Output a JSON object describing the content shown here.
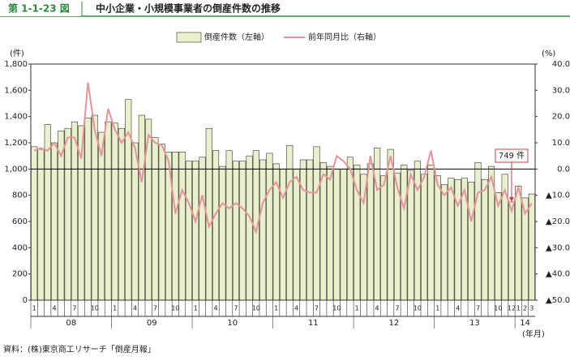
{
  "header": {
    "figure_no": "第 1-1-23 図",
    "title": "中小企業・小規模事業者の倒産件数の推移"
  },
  "source": "資料：(株)東京商工リサーチ「倒産月報」",
  "chart_data": {
    "type": "combo",
    "y_unit": "(件)",
    "y2_unit": "(%)",
    "x_unit": "(年月)",
    "categories": [
      "1",
      null,
      null,
      "4",
      null,
      null,
      "7",
      null,
      null,
      "10",
      null,
      null,
      "1",
      null,
      null,
      "4",
      null,
      null,
      "7",
      null,
      null,
      "10",
      null,
      null,
      "1",
      null,
      null,
      "4",
      null,
      null,
      "7",
      null,
      null,
      "10",
      null,
      null,
      "1",
      null,
      null,
      "4",
      null,
      null,
      "7",
      null,
      null,
      "10",
      null,
      null,
      "1",
      null,
      null,
      "4",
      null,
      null,
      "7",
      null,
      null,
      "10",
      null,
      null,
      "1",
      null,
      null,
      "4",
      null,
      null,
      "7",
      null,
      null,
      "10",
      null,
      "12",
      "1",
      "2",
      "3"
    ],
    "years": [
      "08",
      "09",
      "10",
      "11",
      "12",
      "13",
      "14"
    ],
    "series": [
      {
        "name": "倒産件数（左軸）",
        "type": "bar",
        "color": "#e8f0cc",
        "values": [
          1170,
          1150,
          1340,
          1200,
          1290,
          1310,
          1360,
          1330,
          1390,
          1410,
          1280,
          1360,
          1350,
          1310,
          1530,
          1200,
          1410,
          1380,
          1240,
          1190,
          1130,
          1130,
          1130,
          1060,
          1060,
          1090,
          1310,
          1140,
          1020,
          1140,
          1060,
          1060,
          1100,
          1140,
          1070,
          1120,
          1040,
          1000,
          1180,
          1000,
          1070,
          1070,
          1170,
          1050,
          1020,
          1000,
          1000,
          1090,
          1030,
          960,
          1040,
          1160,
          950,
          1150,
          970,
          1030,
          990,
          1060,
          960,
          1030,
          950,
          880,
          930,
          920,
          930,
          900,
          1050,
          920,
          1020,
          820,
          960,
          749,
          870,
          780,
          810
        ]
      },
      {
        "name": "前年同月比（右軸）",
        "type": "line",
        "axis": "y2",
        "color": "#e8939a",
        "values": [
          7,
          8,
          7,
          10,
          5,
          12,
          12,
          4,
          33,
          15,
          5,
          23,
          15,
          10,
          14,
          8,
          -5,
          13,
          10,
          9,
          3,
          -17,
          -8,
          -13,
          -20,
          -10,
          -22,
          -17,
          -13,
          -15,
          -13,
          -15,
          -18,
          -24,
          -13,
          -8,
          -5,
          -11,
          -5,
          -3,
          -8,
          -9,
          -9,
          -2,
          -4,
          5,
          3,
          0,
          -8,
          -13,
          5,
          -8,
          -6,
          5,
          -7,
          -15,
          -2,
          -8,
          -3,
          7,
          -6,
          -10,
          -7,
          -14,
          -8,
          -20,
          -9,
          -8,
          -3,
          -14,
          -8,
          -16,
          -7,
          -17,
          -13
        ]
      }
    ],
    "annotation": {
      "text": "749 件",
      "value": 749
    },
    "ylim": [
      0,
      1800
    ],
    "yticks": [
      0,
      200,
      400,
      600,
      800,
      {
        "value": 1000,
        "label": "1,000"
      },
      {
        "value": 1200,
        "label": "1,200"
      },
      {
        "value": 1400,
        "label": "1,400"
      },
      {
        "value": 1600,
        "label": "1,600"
      },
      {
        "value": 1800,
        "label": "1,800"
      }
    ],
    "y2lim": [
      -50,
      40
    ],
    "y2ticks": [
      {
        "value": 40,
        "label": "40.0"
      },
      {
        "value": 30,
        "label": "30.0"
      },
      {
        "value": 20,
        "label": "20.0"
      },
      {
        "value": 10,
        "label": "10.0"
      },
      {
        "value": 0,
        "label": "0.0"
      },
      {
        "value": -10,
        "label": "▲10.0"
      },
      {
        "value": -20,
        "label": "▲20.0"
      },
      {
        "value": -30,
        "label": "▲30.0"
      },
      {
        "value": -40,
        "label": "▲40.0"
      },
      {
        "value": -50,
        "label": "▲50.0"
      }
    ]
  }
}
